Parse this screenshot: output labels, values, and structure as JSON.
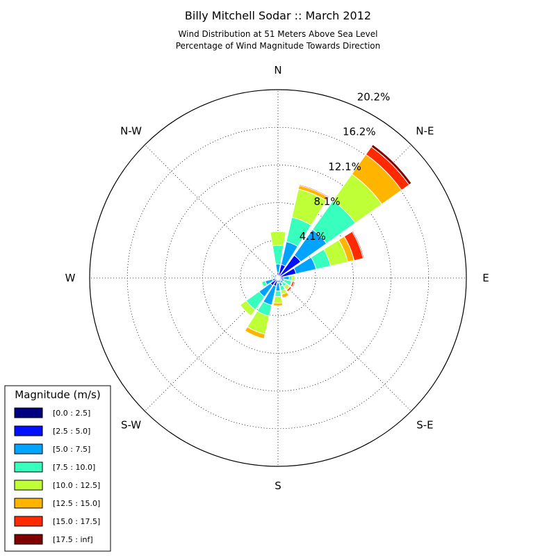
{
  "chart_data": {
    "type": "windrose",
    "title": "Billy Mitchell Sodar :: March 2012",
    "subtitle_line1": "Wind Distribution at 51 Meters Above Sea Level",
    "subtitle_line2": "Percentage of Wind Magnitude Towards Direction",
    "direction_labels": [
      "N",
      "N-E",
      "E",
      "S-E",
      "S",
      "S-W",
      "W",
      "N-W"
    ],
    "radial_ticks": [
      "4.1%",
      "8.1%",
      "12.1%",
      "16.2%",
      "20.2%"
    ],
    "radial_tick_values": [
      4.05,
      8.1,
      12.15,
      16.2,
      20.25
    ],
    "rmax": 20.25,
    "grid": true,
    "legend_position": "lower-left",
    "legend_title": "Magnitude (m/s)",
    "bins": [
      {
        "label": "[0.0 : 2.5]",
        "color": "#000080"
      },
      {
        "label": "[2.5 : 5.0]",
        "color": "#0010ff"
      },
      {
        "label": "[5.0 : 7.5]",
        "color": "#00a4ff"
      },
      {
        "label": "[7.5 : 10.0]",
        "color": "#38ffbe"
      },
      {
        "label": "[10.0 : 12.5]",
        "color": "#bfff38"
      },
      {
        "label": "[12.5 : 15.0]",
        "color": "#ffb400"
      },
      {
        "label": "[15.0 : 17.5]",
        "color": "#ff2a00"
      },
      {
        "label": "[17.5 : inf]",
        "color": "#800000"
      }
    ],
    "directions_deg": [
      0,
      22.5,
      45,
      67.5,
      90,
      112.5,
      135,
      157.5,
      180,
      202.5,
      225,
      247.5,
      270,
      292.5,
      337.5
    ],
    "cumulative_percent": [
      [
        0.1,
        0.6,
        1.5,
        3.5,
        5.0,
        5.0,
        5.0,
        5.0
      ],
      [
        0.1,
        1.5,
        4.0,
        6.7,
        9.8,
        10.2,
        10.3,
        10.3
      ],
      [
        0.2,
        3.0,
        6.4,
        10.2,
        13.7,
        16.3,
        17.3,
        17.6
      ],
      [
        0.2,
        2.0,
        4.2,
        5.8,
        7.7,
        8.4,
        9.4,
        9.5
      ],
      [
        0.1,
        0.6,
        1.2,
        1.5,
        1.8,
        1.8,
        1.8,
        1.8
      ],
      [
        0.1,
        0.4,
        0.7,
        1.5,
        1.5,
        1.6,
        1.8,
        1.9
      ],
      [
        0.1,
        0.4,
        0.7,
        1.1,
        1.5,
        1.6,
        1.8,
        1.8
      ],
      [
        0.1,
        0.5,
        0.9,
        1.4,
        1.8,
        2.2,
        2.2,
        2.2
      ],
      [
        0.1,
        0.5,
        1.4,
        2.0,
        2.7,
        3.0,
        3.0,
        3.0
      ],
      [
        0.1,
        0.9,
        3.0,
        4.2,
        6.2,
        6.7,
        6.7,
        6.7
      ],
      [
        0.1,
        1.0,
        2.5,
        4.2,
        5.0,
        5.0,
        5.0,
        5.0
      ],
      [
        0.1,
        0.6,
        1.4,
        1.8,
        1.9,
        1.9,
        1.9,
        1.9
      ],
      [
        0.1,
        0.3,
        0.5,
        0.6,
        0.6,
        0.6,
        0.6,
        0.6
      ],
      [
        0.1,
        0.4,
        0.6,
        0.8,
        0.8,
        0.8,
        0.8,
        0.8
      ],
      [
        0.1,
        0.3,
        0.4,
        0.5,
        0.5,
        0.5,
        0.5,
        0.5
      ]
    ]
  }
}
